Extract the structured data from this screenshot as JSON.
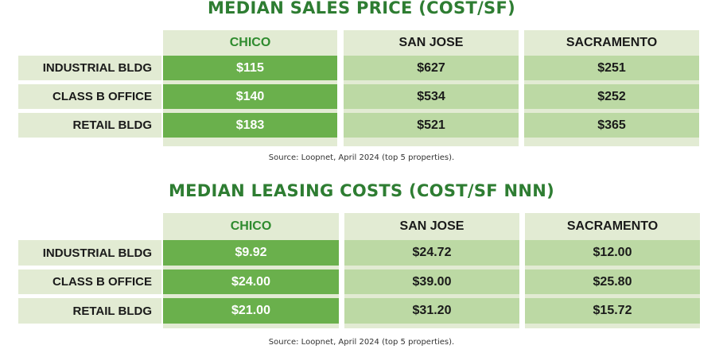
{
  "chart_data": [
    {
      "type": "table",
      "title": "MEDIAN SALES PRICE (COST/SF)",
      "columns": [
        "CHICO",
        "SAN JOSE",
        "SACRAMENTO"
      ],
      "rows": [
        {
          "label": "INDUSTRIAL BLDG",
          "values": [
            "$115",
            "$627",
            "$251"
          ]
        },
        {
          "label": "CLASS B OFFICE",
          "values": [
            "$140",
            "$534",
            "$252"
          ]
        },
        {
          "label": "RETAIL BLDG",
          "values": [
            "$183",
            "$521",
            "$365"
          ]
        }
      ],
      "source": "Source: Loopnet, April 2024 (top 5 properties)."
    },
    {
      "type": "table",
      "title": "MEDIAN LEASING COSTS (COST/SF NNN)",
      "columns": [
        "CHICO",
        "SAN JOSE",
        "SACRAMENTO"
      ],
      "rows": [
        {
          "label": "INDUSTRIAL BLDG",
          "values": [
            "$9.92",
            "$24.72",
            "$12.00"
          ]
        },
        {
          "label": "CLASS B OFFICE",
          "values": [
            "$24.00",
            "$39.00",
            "$25.80"
          ]
        },
        {
          "label": "RETAIL BLDG",
          "values": [
            "$21.00",
            "$31.20",
            "$15.72"
          ]
        }
      ],
      "source": "Source: Loopnet, April 2024 (top 5 properties)."
    }
  ],
  "colors": {
    "title": "#2e7d32",
    "header_bg": "#e2ebd3",
    "chico_cell": "#6ab04c",
    "other_cell": "#bcd9a4"
  }
}
